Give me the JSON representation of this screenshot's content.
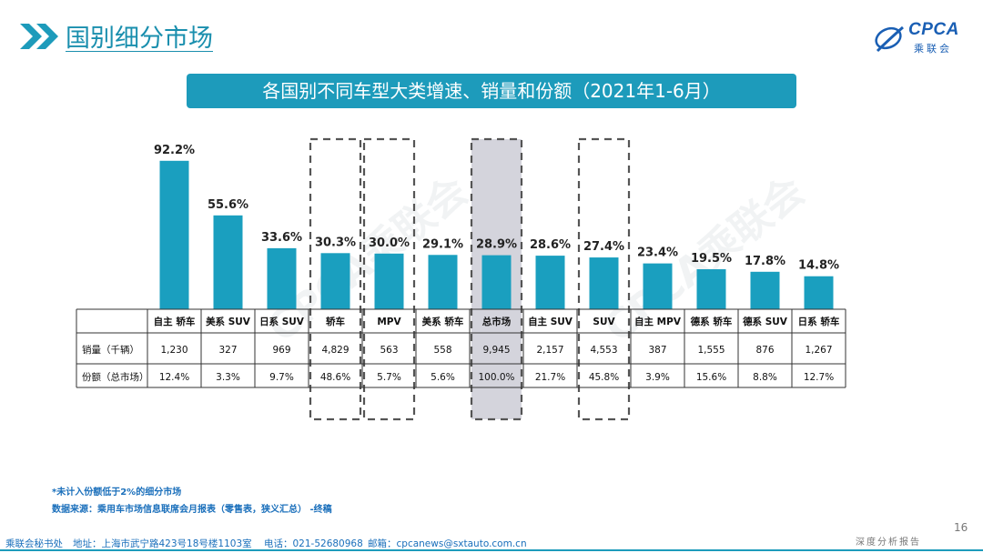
{
  "header": {
    "title": "国别细分市场",
    "logo_text": "CPCA",
    "logo_sub": "乘联会"
  },
  "chart_title": "各国别不同车型大类增速、销量和份额（2021年1-6月）",
  "watermark": "CPCA乘联会",
  "colors": {
    "bar": "#1a9fbf",
    "accent": "#1d9bbb",
    "highlight_fill": "#d4d4dc"
  },
  "chart_data": {
    "type": "bar",
    "title": "各国别不同车型大类增速、销量和份额（2021年1-6月）",
    "categories": [
      "自主 轿车",
      "美系 SUV",
      "日系 SUV",
      "轿车",
      "MPV",
      "美系 轿车",
      "总市场",
      "自主 SUV",
      "SUV",
      "自主 MPV",
      "德系 轿车",
      "德系 SUV",
      "日系 轿车"
    ],
    "values": [
      92.2,
      55.6,
      33.6,
      30.3,
      30.0,
      29.1,
      28.9,
      28.6,
      27.4,
      23.4,
      19.5,
      17.8,
      14.8
    ],
    "value_labels": [
      "92.2%",
      "55.6%",
      "33.6%",
      "30.3%",
      "30.0%",
      "29.1%",
      "28.9%",
      "28.6%",
      "27.4%",
      "23.4%",
      "19.5%",
      "17.8%",
      "14.8%"
    ],
    "ylim": [
      0,
      100
    ],
    "highlighted_dashed": [
      "轿车",
      "MPV",
      "总市场",
      "SUV"
    ],
    "highlighted_filled": [
      "总市场"
    ],
    "table": {
      "rows": [
        {
          "label": "销量（千辆）",
          "values": [
            "1,230",
            "327",
            "969",
            "4,829",
            "563",
            "558",
            "9,945",
            "2,157",
            "4,553",
            "387",
            "1,555",
            "876",
            "1,267"
          ]
        },
        {
          "label": "份额（总市场）",
          "values": [
            "12.4%",
            "3.3%",
            "9.7%",
            "48.6%",
            "5.7%",
            "5.6%",
            "100.0%",
            "21.7%",
            "45.8%",
            "3.9%",
            "15.6%",
            "8.8%",
            "12.7%"
          ]
        }
      ]
    }
  },
  "notes": {
    "note1": "*未计入份额低于2%的细分市场",
    "note2": "数据来源：乘用车市场信息联席会月报表（零售表，狭义汇总）  -终稿"
  },
  "footer": {
    "org": "乘联会秘书处",
    "address": "地址：上海市武宁路423号18号楼1103室",
    "phone": "电话：021-52680968",
    "email": "邮箱：cpcanews@sxtauto.com.cn",
    "report": "深度分析报告",
    "page": "16"
  }
}
